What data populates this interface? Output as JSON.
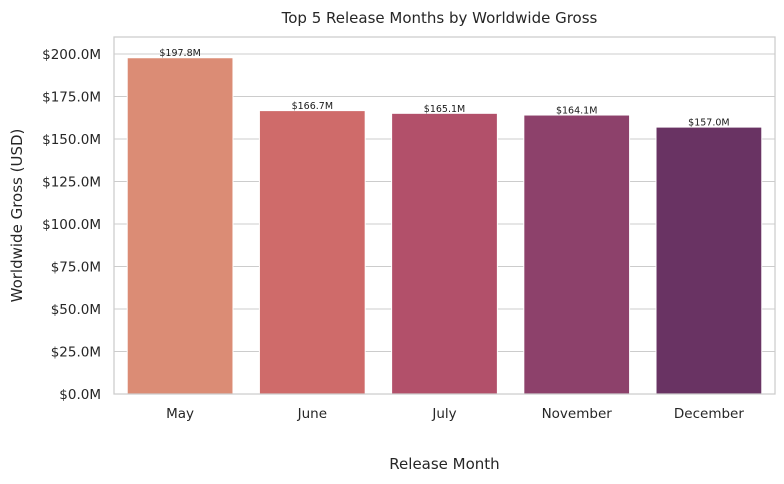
{
  "chart_data": {
    "type": "bar",
    "title": "Top 5 Release Months by Worldwide Gross",
    "xlabel": "Release Month",
    "ylabel": "Worldwide Gross (USD)",
    "categories": [
      "May",
      "June",
      "July",
      "November",
      "December"
    ],
    "values": [
      197.8,
      166.7,
      165.1,
      164.1,
      157.0
    ],
    "value_unit": "millions USD",
    "data_labels": [
      "$197.8M",
      "$166.7M",
      "$165.1M",
      "$164.1M",
      "$157.0M"
    ],
    "ylim": [
      0,
      210
    ],
    "yticks": [
      0,
      25,
      50,
      75,
      100,
      125,
      150,
      175,
      200
    ],
    "ytick_labels": [
      "$0.0M",
      "$25.0M",
      "$50.0M",
      "$75.0M",
      "$100.0M",
      "$125.0M",
      "$150.0M",
      "$175.0M",
      "$200.0M"
    ],
    "bar_colors": [
      "#db8c75",
      "#cf6b6a",
      "#b2506a",
      "#8d416b",
      "#693363"
    ],
    "grid": "horizontal",
    "legend": "none"
  }
}
